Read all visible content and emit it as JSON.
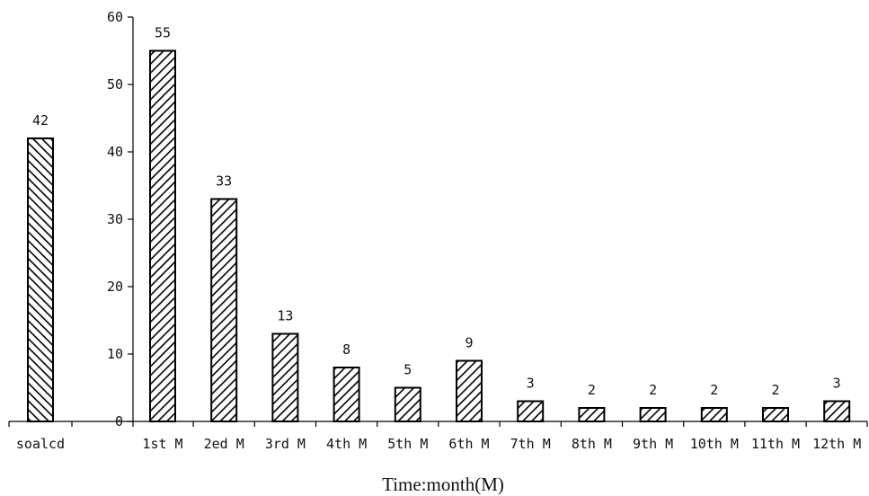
{
  "chart_data": {
    "type": "bar",
    "categories": [
      "soalcd",
      "1st M",
      "2ed M",
      "3rd M",
      "4th M",
      "5th M",
      "6th M",
      "7th M",
      "8th M",
      "9th M",
      "10th M",
      "11th M",
      "12th M"
    ],
    "values": [
      42,
      55,
      33,
      13,
      8,
      5,
      9,
      3,
      2,
      2,
      2,
      2,
      3
    ],
    "data_labels": [
      "42",
      "55",
      "33",
      "13",
      "8",
      "5",
      "9",
      "3",
      "2",
      "2",
      "2",
      "2",
      "3"
    ],
    "y_ticks": [
      "0",
      "10",
      "20",
      "30",
      "40",
      "50",
      "60"
    ],
    "xlabel": "Time:month(M)",
    "ylabel": "",
    "ylim": [
      0,
      60
    ],
    "grid": false,
    "bar_fill": "diagonal-hatch",
    "colors": {
      "bar_stroke": "#000000",
      "hatch": "#000000",
      "axis": "#000000"
    }
  }
}
